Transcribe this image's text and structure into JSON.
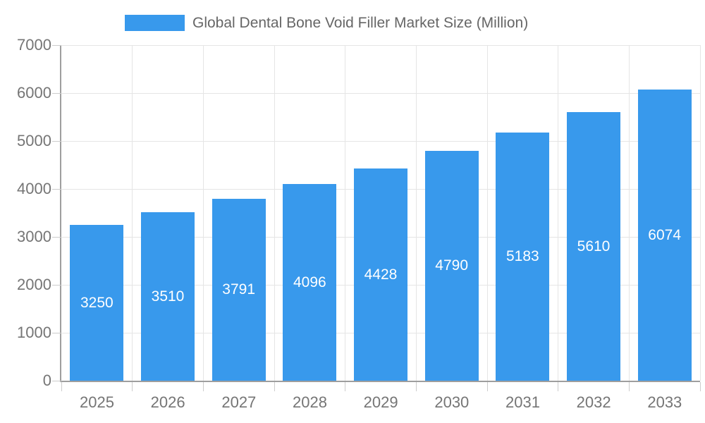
{
  "legend": {
    "label": "Global Dental Bone Void Filler Market Size (Million)"
  },
  "chart_data": {
    "type": "bar",
    "title": "Global Dental Bone Void Filler Market Size (Million)",
    "categories": [
      "2025",
      "2026",
      "2027",
      "2028",
      "2029",
      "2030",
      "2031",
      "2032",
      "2033"
    ],
    "series": [
      {
        "name": "Global Dental Bone Void Filler Market Size (Million)",
        "values": [
          3250,
          3510,
          3791,
          4096,
          4428,
          4790,
          5183,
          5610,
          6074
        ]
      }
    ],
    "xlabel": "",
    "ylabel": "",
    "ylim": [
      0,
      7000
    ],
    "ytick_step": 1000,
    "ytick_labels": [
      "0",
      "1000",
      "2000",
      "3000",
      "4000",
      "5000",
      "6000",
      "7000"
    ],
    "grid": "both",
    "legend_position": "top-center",
    "value_label_position": "inside-center",
    "colors": {
      "bar": "#3899EC",
      "value_label": "#ffffff",
      "axis_line": "#9e9e9e",
      "gridline": "#e5e5e5",
      "tick_mark": "#cccccc",
      "axis_label": "#757575",
      "legend_text": "#666666"
    }
  }
}
